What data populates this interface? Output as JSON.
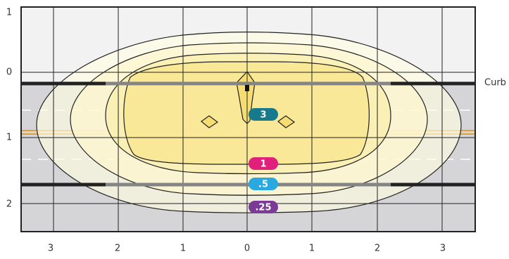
{
  "x_axis_labels": [
    "3",
    "2",
    "1",
    "0",
    "1",
    "2",
    "3"
  ],
  "y_axis_labels": [
    "1",
    "0",
    "1",
    "2"
  ],
  "curb_label": "Curb",
  "contour_labels": [
    "3",
    "1",
    ".5",
    ".25"
  ]
}
